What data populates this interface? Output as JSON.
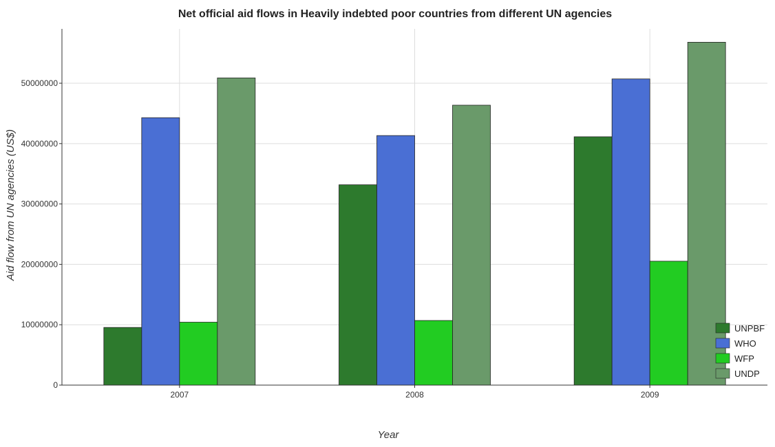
{
  "chart_data": {
    "type": "bar",
    "title": "Net official aid flows in Heavily indebted poor countries from different UN agencies",
    "xlabel": "Year",
    "ylabel": "Aid flow from UN agencies (US$)",
    "categories": [
      "2007",
      "2008",
      "2009"
    ],
    "series": [
      {
        "name": "UNPBF",
        "color": "#2d7a2d",
        "values": [
          9550000,
          33180000,
          41130000
        ]
      },
      {
        "name": "WHO",
        "color": "#4a6fd4",
        "values": [
          44290000,
          41330000,
          50710000
        ]
      },
      {
        "name": "WFP",
        "color": "#22cc22",
        "values": [
          10420000,
          10700000,
          20520000
        ]
      },
      {
        "name": "UNDP",
        "color": "#6a9a6a",
        "values": [
          50880000,
          46360000,
          56790000
        ]
      }
    ],
    "ylim": [
      0,
      59000000
    ],
    "yticks": [
      0,
      10000000,
      20000000,
      30000000,
      40000000,
      50000000
    ],
    "ytick_labels": [
      "0",
      "10000000",
      "20000000",
      "30000000",
      "40000000",
      "50000000"
    ],
    "grid": true,
    "legend_position": "bottom-right"
  }
}
